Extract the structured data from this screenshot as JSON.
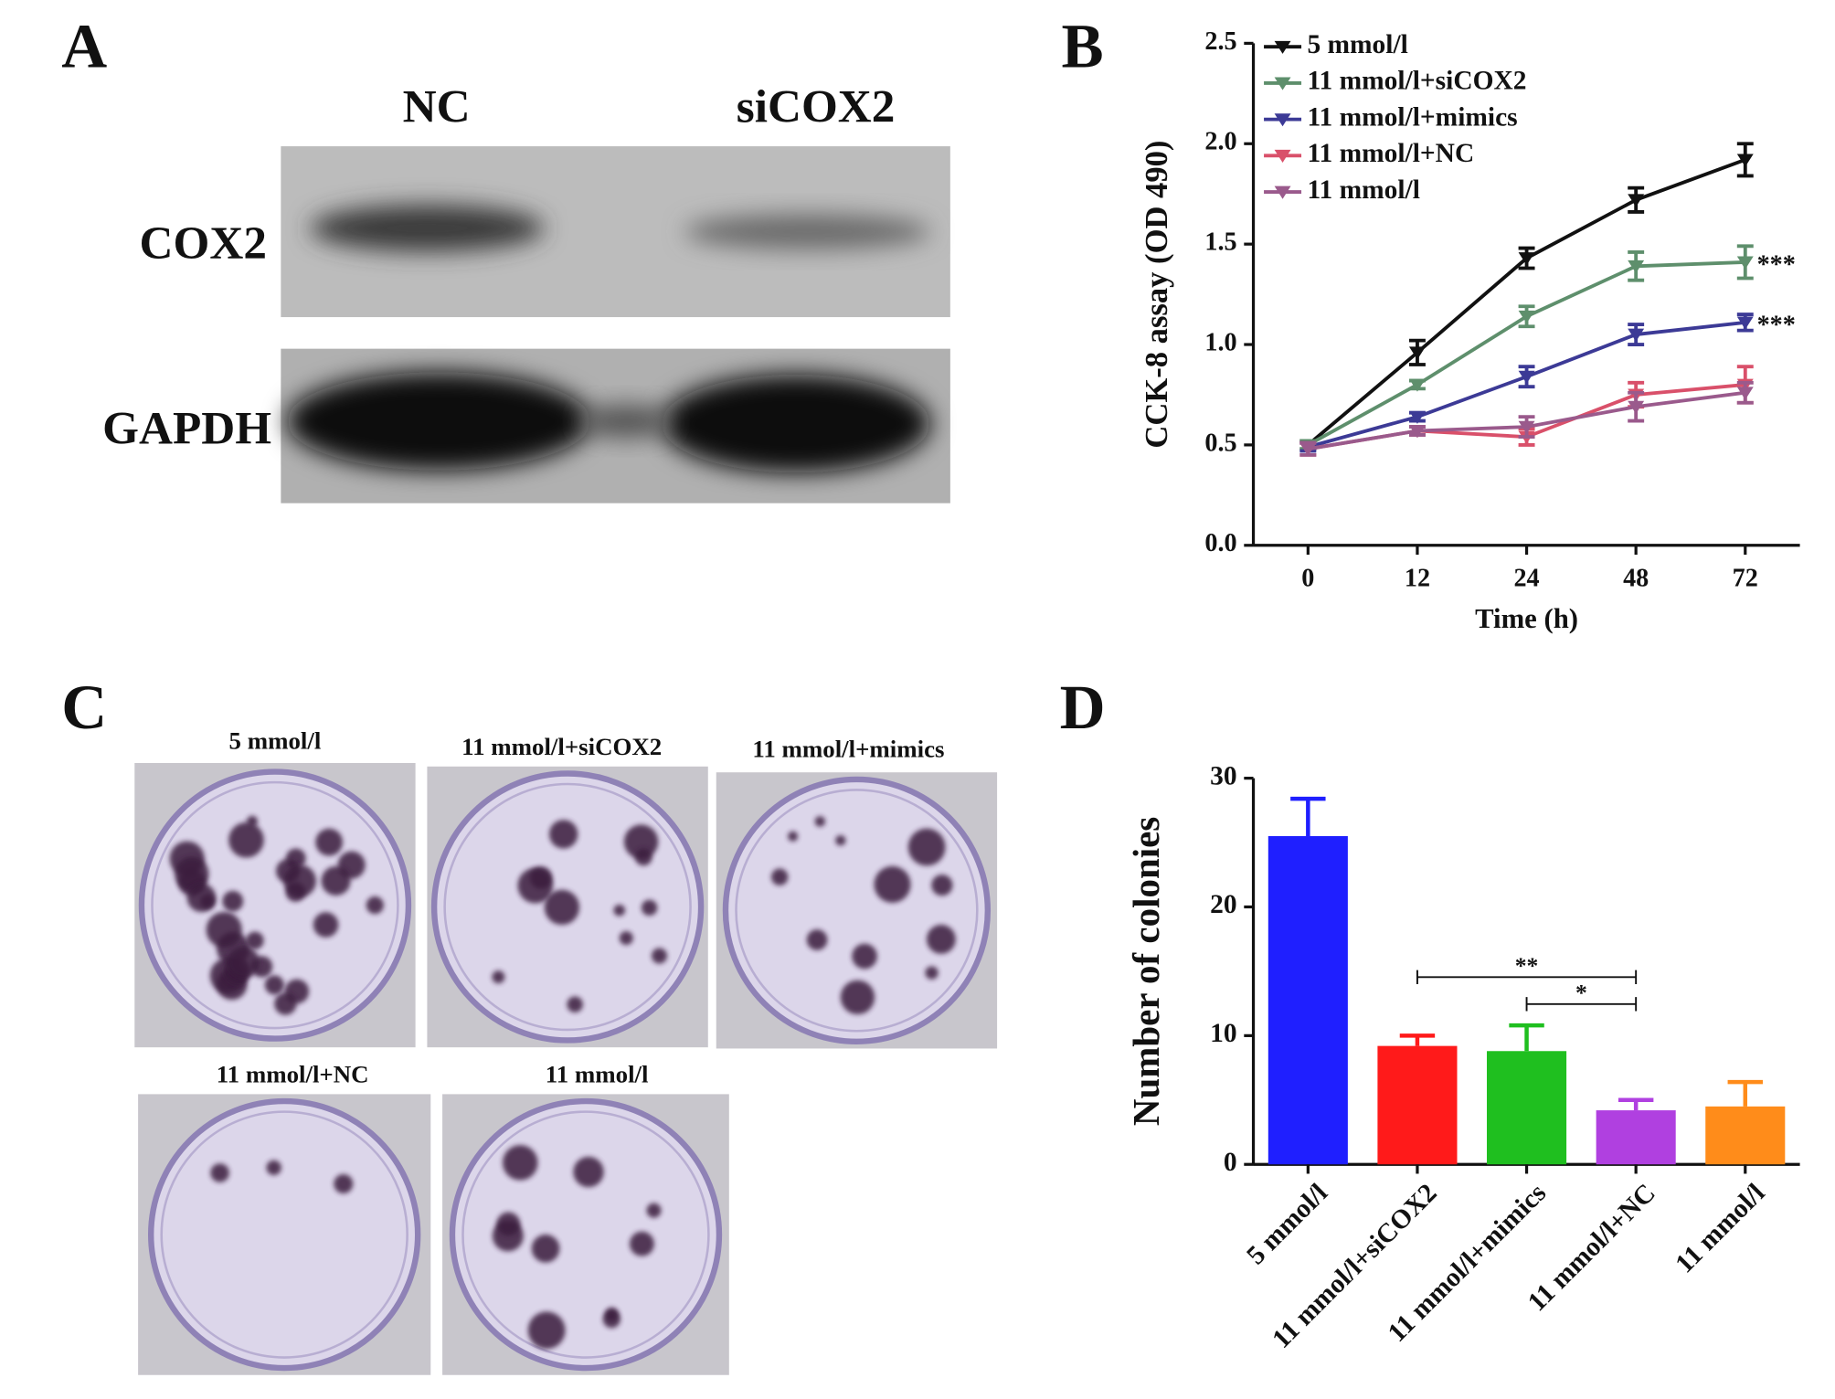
{
  "panel_a": {
    "letter": "A",
    "lanes": [
      "NC",
      "siCOX2"
    ],
    "proteins": [
      "COX2",
      "GAPDH"
    ]
  },
  "panel_c": {
    "letter": "C",
    "dishes": [
      "5 mmol/l",
      "11 mmol/l+siCOX2",
      "11 mmol/l+mimics",
      "11 mmol/l+NC",
      "11 mmol/l"
    ]
  },
  "chart_data": [
    {
      "type": "line",
      "panel_label": "B",
      "x_label": "Time (h)",
      "y_label": "CCK-8 assay (OD 490)",
      "categories": [
        "0",
        "12",
        "24",
        "48",
        "72"
      ],
      "ylim": [
        0,
        2.5
      ],
      "yticks": [
        {
          "value": 0,
          "label": "0.0"
        },
        {
          "value": 0.5,
          "label": "0.5"
        },
        {
          "value": 1,
          "label": "1.0"
        },
        {
          "value": 1.5,
          "label": "1.5"
        },
        {
          "value": 2,
          "label": "2.0"
        },
        {
          "value": 2.5,
          "label": "2.5"
        }
      ],
      "series": [
        {
          "name": "5 mmol/l",
          "color": "#111111",
          "values": [
            0.5,
            0.96,
            1.43,
            1.72,
            1.92
          ],
          "errors": [
            0.02,
            0.06,
            0.05,
            0.06,
            0.08
          ]
        },
        {
          "name": "11 mmol/l+siCOX2",
          "color": "#5e8f6c",
          "values": [
            0.5,
            0.8,
            1.14,
            1.39,
            1.41
          ],
          "errors": [
            0.02,
            0.02,
            0.05,
            0.07,
            0.08
          ],
          "significance": "***"
        },
        {
          "name": "11 mmol/l+mimics",
          "color": "#3c3a96",
          "values": [
            0.49,
            0.64,
            0.84,
            1.05,
            1.11
          ],
          "errors": [
            0.02,
            0.02,
            0.05,
            0.05,
            0.04
          ],
          "significance": "***"
        },
        {
          "name": "11 mmol/l+NC",
          "color": "#d9506a",
          "values": [
            0.48,
            0.57,
            0.54,
            0.75,
            0.8
          ],
          "errors": [
            0.03,
            0.02,
            0.04,
            0.06,
            0.09
          ]
        },
        {
          "name": "11 mmol/l",
          "color": "#9a5a8c",
          "values": [
            0.48,
            0.57,
            0.59,
            0.69,
            0.76
          ],
          "errors": [
            0.03,
            0.02,
            0.05,
            0.07,
            0.05
          ]
        }
      ]
    },
    {
      "type": "bar",
      "panel_label": "D",
      "y_label": "Number of colonies",
      "categories": [
        "5 mmol/l",
        "11 mmol/l+siCOX2",
        "11 mmol/l+mimics",
        "11 mmol/l+NC",
        "11 mmol/l"
      ],
      "values": [
        25.5,
        9.2,
        8.8,
        4.2,
        4.5
      ],
      "errors": [
        2.9,
        0.8,
        2.0,
        0.8,
        1.9
      ],
      "colors": [
        "#1f1fff",
        "#ff1a1a",
        "#1fbf1f",
        "#b040e0",
        "#ff8c1a"
      ],
      "ylim": [
        0,
        30
      ],
      "yticks": [
        0,
        10,
        20,
        30
      ],
      "significance": [
        "**",
        "*"
      ]
    }
  ]
}
